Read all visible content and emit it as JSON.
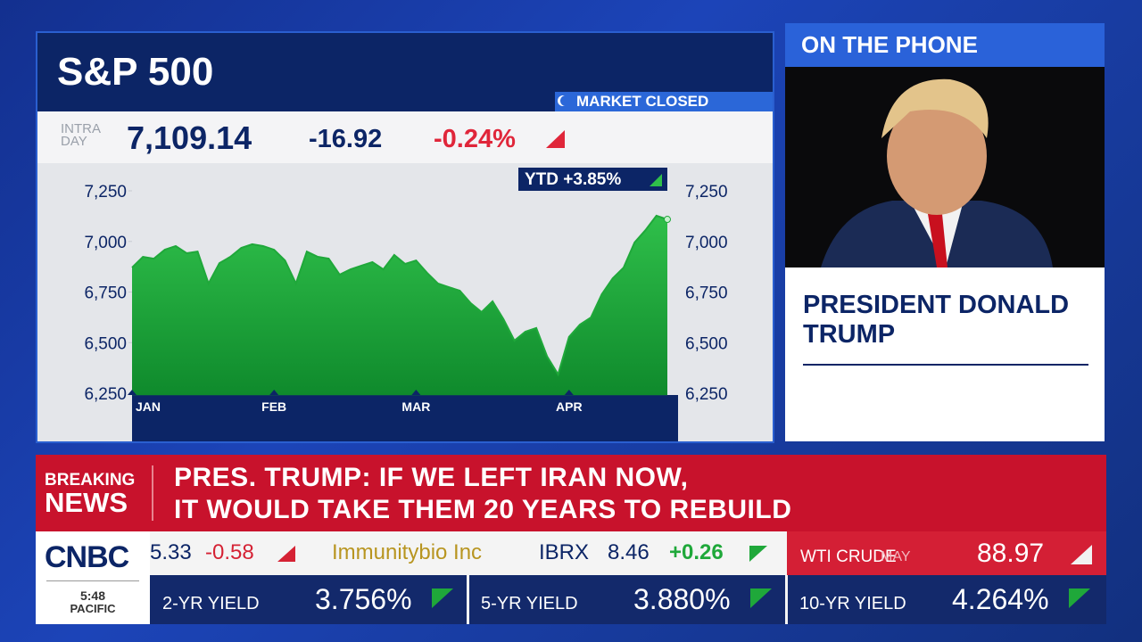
{
  "chart_data": {
    "type": "area",
    "title": "S&P 500",
    "categories": [
      "JAN",
      null,
      null,
      null,
      null,
      null,
      null,
      null,
      null,
      null,
      null,
      null,
      null,
      "FEB",
      null,
      null,
      null,
      null,
      null,
      null,
      null,
      null,
      null,
      null,
      null,
      null,
      "MAR",
      null,
      null,
      null,
      null,
      null,
      null,
      null,
      null,
      null,
      null,
      null,
      null,
      null,
      "APR",
      null,
      null,
      null,
      null,
      null,
      null,
      null,
      null,
      null
    ],
    "values": [
      6871,
      6924,
      6915,
      6959,
      6977,
      6942,
      6950,
      6792,
      6893,
      6924,
      6968,
      6986,
      6977,
      6959,
      6906,
      6792,
      6950,
      6924,
      6915,
      6836,
      6862,
      6880,
      6898,
      6862,
      6933,
      6889,
      6906,
      6845,
      6792,
      6774,
      6757,
      6695,
      6651,
      6704,
      6616,
      6510,
      6554,
      6572,
      6431,
      6343,
      6528,
      6589,
      6624,
      6739,
      6818,
      6871,
      6995,
      7056,
      7127,
      7109
    ],
    "color": "#1fa83a",
    "ylim": [
      6240,
      7380
    ],
    "yticks": [
      {
        "value": 6250,
        "label": "6,250"
      },
      {
        "value": 6500,
        "label": "6,500"
      },
      {
        "value": 6750,
        "label": "6,750"
      },
      {
        "value": 7000,
        "label": "7,000"
      },
      {
        "value": 7250,
        "label": "7,250"
      }
    ]
  },
  "quote": {
    "status": "MARKET CLOSED",
    "intraday_label": [
      "INTRA",
      "DAY"
    ],
    "last": "7,109.14",
    "change": "-16.92",
    "change_pct": "-0.24%",
    "ytd": "YTD +3.85%"
  },
  "guest": {
    "banner": "ON THE PHONE",
    "name": [
      "PRESIDENT DONALD",
      "TRUMP"
    ]
  },
  "breaking": {
    "label": [
      "BREAKING",
      "NEWS"
    ],
    "headline": [
      "PRES. TRUMP: IF WE LEFT IRAN NOW,",
      "IT WOULD TAKE THEM 20 YEARS TO REBUILD"
    ]
  },
  "ticker": {
    "partial": {
      "price": "5.33",
      "change": "-0.58"
    },
    "stock": {
      "name": "Immunitybio Inc",
      "symbol": "IBRX",
      "price": "8.46",
      "change": "+0.26"
    },
    "commodity": {
      "name": "WTI CRUDE",
      "month": "MAY",
      "price": "88.97"
    },
    "yields": [
      {
        "name": "2-YR YIELD",
        "value": "3.756%"
      },
      {
        "name": "5-YR YIELD",
        "value": "3.880%"
      },
      {
        "name": "10-YR YIELD",
        "value": "4.264%"
      }
    ]
  },
  "logo": {
    "brand": "CNBC",
    "time": "5:48",
    "zone": "PACIFIC"
  }
}
